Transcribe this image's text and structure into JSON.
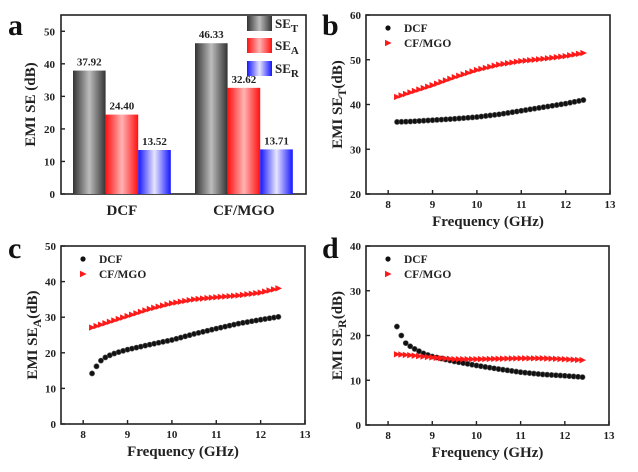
{
  "chart_data": [
    {
      "panel": "a",
      "type": "bar",
      "title": "",
      "xlabel": "",
      "ylabel": "EMI SE (dB)",
      "ylim": [
        0,
        55
      ],
      "yticks": [
        0,
        10,
        20,
        30,
        40,
        50
      ],
      "categories": [
        "DCF",
        "CF/MGO"
      ],
      "series": [
        {
          "name": "SE",
          "sub": "T",
          "values": [
            37.92,
            46.33
          ],
          "labels": [
            "37.92",
            "46.33"
          ],
          "color": "#555555",
          "light": "#b8b8b8"
        },
        {
          "name": "SE",
          "sub": "A",
          "values": [
            24.4,
            32.62
          ],
          "labels": [
            "24.40",
            "32.62"
          ],
          "color": "#ff1f1f",
          "light": "#ffb0b0"
        },
        {
          "name": "SE",
          "sub": "R",
          "values": [
            13.52,
            13.71
          ],
          "labels": [
            "13.52",
            "13.71"
          ],
          "color": "#2222ff",
          "light": "#e2e2ff"
        }
      ],
      "legend": "top-right",
      "grid": false
    },
    {
      "panel": "b",
      "type": "scatter",
      "xlabel": "Frequency (GHz)",
      "ylabel_main": "EMI SE",
      "ylabel_sub": "T",
      "ylabel_tail": "(dB)",
      "xlim": [
        7.5,
        13
      ],
      "ylim": [
        20,
        60
      ],
      "xticks": [
        8,
        9,
        10,
        11,
        12,
        13
      ],
      "yticks": [
        20,
        30,
        40,
        50,
        60
      ],
      "legend": "top-left",
      "grid": false,
      "x_start": 8.2,
      "x_end": 12.4,
      "x_step": 0.1,
      "series": [
        {
          "name": "DCF",
          "marker": "circle",
          "color": "#111111",
          "anchors_x": [
            8.2,
            8.5,
            9.0,
            9.5,
            10.0,
            10.5,
            11.0,
            11.5,
            12.0,
            12.4
          ],
          "anchors_y": [
            36.1,
            36.2,
            36.5,
            36.8,
            37.2,
            37.8,
            38.6,
            39.4,
            40.2,
            41.0
          ]
        },
        {
          "name": "CF/MGO",
          "marker": "triangle-right",
          "color": "#ff1a1a",
          "anchors_x": [
            8.2,
            8.5,
            9.0,
            9.5,
            10.0,
            10.5,
            11.0,
            11.5,
            12.0,
            12.4
          ],
          "anchors_y": [
            41.7,
            42.7,
            44.3,
            46.1,
            47.7,
            48.9,
            49.7,
            50.2,
            50.8,
            51.5
          ]
        }
      ]
    },
    {
      "panel": "c",
      "type": "scatter",
      "xlabel": "Frequency (GHz)",
      "ylabel_main": "EMI SE",
      "ylabel_sub": "A",
      "ylabel_tail": "(dB)",
      "xlim": [
        7.5,
        13
      ],
      "ylim": [
        0,
        50
      ],
      "xticks": [
        8,
        9,
        10,
        11,
        12,
        13
      ],
      "yticks": [
        0,
        10,
        20,
        30,
        40,
        50
      ],
      "legend": "top-left",
      "grid": false,
      "x_start": 8.2,
      "x_end": 12.4,
      "x_step": 0.1,
      "series": [
        {
          "name": "DCF",
          "marker": "circle",
          "color": "#111111",
          "anchors_x": [
            8.2,
            8.3,
            8.4,
            8.5,
            8.6,
            8.7,
            8.8,
            9.0,
            9.5,
            10.0,
            10.5,
            11.0,
            11.5,
            12.0,
            12.4
          ],
          "anchors_y": [
            14.2,
            16.2,
            17.8,
            18.7,
            19.3,
            19.8,
            20.2,
            20.9,
            22.3,
            23.6,
            25.3,
            26.8,
            28.2,
            29.3,
            30.1
          ]
        },
        {
          "name": "CF/MGO",
          "marker": "triangle-right",
          "color": "#ff1a1a",
          "anchors_x": [
            8.2,
            8.5,
            9.0,
            9.5,
            10.0,
            10.5,
            11.0,
            11.5,
            12.0,
            12.4
          ],
          "anchors_y": [
            27.1,
            28.3,
            30.3,
            32.3,
            33.9,
            35.0,
            35.6,
            36.1,
            36.9,
            38.1
          ]
        }
      ]
    },
    {
      "panel": "d",
      "type": "scatter",
      "xlabel": "Frequency (GHz)",
      "ylabel_main": "EMI SE",
      "ylabel_sub": "R",
      "ylabel_tail": "(dB)",
      "xlim": [
        7.5,
        13
      ],
      "ylim": [
        0,
        40
      ],
      "xticks": [
        8,
        9,
        10,
        11,
        12,
        13
      ],
      "yticks": [
        0,
        10,
        20,
        30,
        40
      ],
      "legend": "top-left",
      "grid": false,
      "x_start": 8.2,
      "x_end": 12.4,
      "x_step": 0.1,
      "series": [
        {
          "name": "DCF",
          "marker": "circle",
          "color": "#111111",
          "anchors_x": [
            8.2,
            8.3,
            8.4,
            8.5,
            8.6,
            8.7,
            8.8,
            9.0,
            9.5,
            10.0,
            10.5,
            11.0,
            11.5,
            12.0,
            12.4
          ],
          "anchors_y": [
            22.0,
            20.0,
            18.3,
            17.6,
            17.0,
            16.5,
            16.0,
            15.3,
            14.2,
            13.3,
            12.5,
            11.8,
            11.3,
            11.0,
            10.7
          ]
        },
        {
          "name": "CF/MGO",
          "marker": "triangle-right",
          "color": "#ff1a1a",
          "anchors_x": [
            8.2,
            8.5,
            9.0,
            9.5,
            10.0,
            10.5,
            11.0,
            11.5,
            12.0,
            12.4
          ],
          "anchors_y": [
            15.8,
            15.6,
            15.1,
            14.7,
            14.7,
            14.8,
            14.9,
            14.9,
            14.7,
            14.5
          ]
        }
      ]
    }
  ],
  "panel_letters": [
    "a",
    "b",
    "c",
    "d"
  ]
}
